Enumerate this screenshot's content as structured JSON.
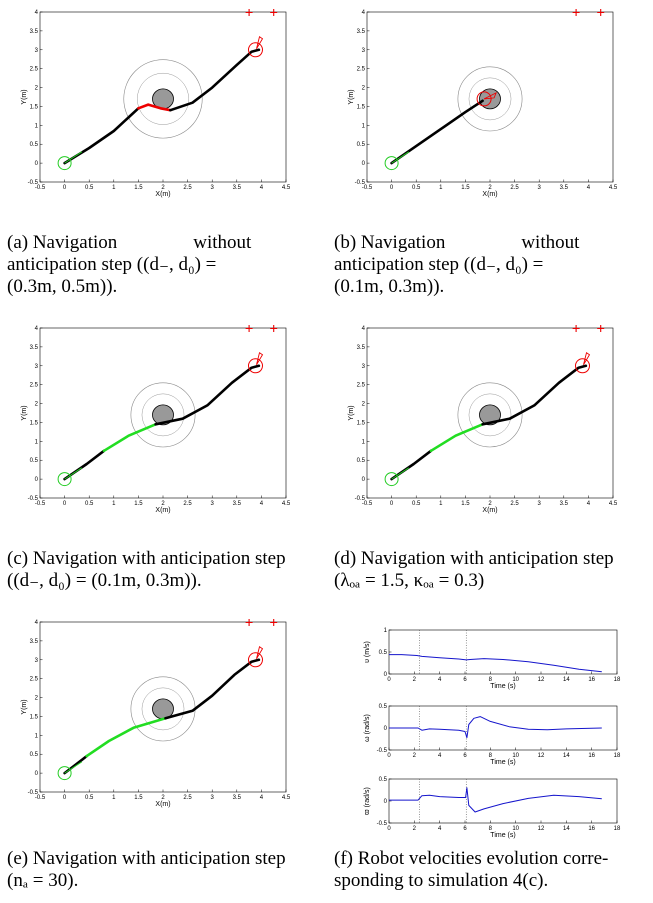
{
  "traj_panels": [
    {
      "id": "a",
      "xlabel": "X(m)",
      "ylabel": "Y(m)",
      "xticks": [
        "-0.5",
        "0",
        "0.5",
        "1",
        "1.5",
        "2",
        "2.5",
        "3",
        "3.5",
        "4",
        "4.5"
      ],
      "yticks": [
        "-0.5",
        "0",
        "0.5",
        "1",
        "1.5",
        "2",
        "2.5",
        "3",
        "3.5",
        "4"
      ],
      "caption_lines": [
        "(a) Navigation    without",
        "anticipation step ((d₋, d₀) =",
        "(0.3m, 0.5m))."
      ],
      "outer_radius": 0.55,
      "path": [
        {
          "color": "#000000",
          "pts": [
            [
              0,
              0
            ],
            [
              0.5,
              0.4
            ],
            [
              1.0,
              0.85
            ],
            [
              1.5,
              1.45
            ]
          ]
        },
        {
          "color": "#ee0000",
          "pts": [
            [
              1.5,
              1.45
            ],
            [
              1.7,
              1.55
            ],
            [
              1.95,
              1.45
            ],
            [
              2.15,
              1.4
            ]
          ]
        },
        {
          "color": "#000000",
          "pts": [
            [
              2.15,
              1.4
            ],
            [
              2.6,
              1.6
            ],
            [
              3.0,
              2.0
            ],
            [
              3.5,
              2.6
            ],
            [
              3.8,
              2.95
            ],
            [
              3.95,
              3.0
            ]
          ]
        }
      ]
    },
    {
      "id": "b",
      "xlabel": "X(m)",
      "ylabel": "Y(m)",
      "xticks": [
        "-0.5",
        "0",
        "0.5",
        "1",
        "1.5",
        "2",
        "2.5",
        "3",
        "3.5",
        "4",
        "4.5"
      ],
      "yticks": [
        "-0.5",
        "0",
        "0.5",
        "1",
        "1.5",
        "2",
        "2.5",
        "3",
        "3.5",
        "4"
      ],
      "caption_lines": [
        "(b) Navigation    without",
        "anticipation step ((d₋, d₀) =",
        "(0.1m, 0.3m))."
      ],
      "outer_radius": 0.45,
      "path": [
        {
          "color": "#000000",
          "pts": [
            [
              0,
              0
            ],
            [
              0.5,
              0.45
            ],
            [
              1.0,
              0.9
            ],
            [
              1.5,
              1.35
            ],
            [
              1.85,
              1.65
            ]
          ]
        }
      ]
    },
    {
      "id": "c",
      "xlabel": "X(m)",
      "ylabel": "Y(m)",
      "xticks": [
        "-0.5",
        "0",
        "0.5",
        "1",
        "1.5",
        "2",
        "2.5",
        "3",
        "3.5",
        "4",
        "4.5"
      ],
      "yticks": [
        "-0.5",
        "0",
        "0.5",
        "1",
        "1.5",
        "2",
        "2.5",
        "3",
        "3.5",
        "4"
      ],
      "caption_lines": [
        "(c) Navigation with anticipation step",
        "((d₋, d₀) = (0.1m, 0.3m))."
      ],
      "outer_radius": 0.45,
      "path": [
        {
          "color": "#000000",
          "pts": [
            [
              0,
              0
            ],
            [
              0.45,
              0.4
            ],
            [
              0.8,
              0.75
            ]
          ]
        },
        {
          "color": "#22dd22",
          "pts": [
            [
              0.8,
              0.75
            ],
            [
              1.3,
              1.15
            ],
            [
              1.85,
              1.45
            ]
          ]
        },
        {
          "color": "#000000",
          "pts": [
            [
              1.85,
              1.45
            ],
            [
              2.4,
              1.6
            ],
            [
              2.9,
              1.95
            ],
            [
              3.4,
              2.55
            ],
            [
              3.8,
              2.95
            ],
            [
              3.95,
              3.0
            ]
          ]
        }
      ]
    },
    {
      "id": "d",
      "xlabel": "X(m)",
      "ylabel": "Y(m)",
      "xticks": [
        "-0.5",
        "0",
        "0.5",
        "1",
        "1.5",
        "2",
        "2.5",
        "3",
        "3.5",
        "4",
        "4.5"
      ],
      "yticks": [
        "-0.5",
        "0",
        "0.5",
        "1",
        "1.5",
        "2",
        "2.5",
        "3",
        "3.5",
        "4"
      ],
      "caption_lines": [
        "(d) Navigation with anticipation step",
        "(λₒₐ = 1.5, κₒₐ = 0.3)"
      ],
      "outer_radius": 0.45,
      "path": [
        {
          "color": "#000000",
          "pts": [
            [
              0,
              0
            ],
            [
              0.45,
              0.4
            ],
            [
              0.8,
              0.75
            ]
          ]
        },
        {
          "color": "#22dd22",
          "pts": [
            [
              0.8,
              0.75
            ],
            [
              1.3,
              1.15
            ],
            [
              1.85,
              1.45
            ]
          ]
        },
        {
          "color": "#000000",
          "pts": [
            [
              1.85,
              1.45
            ],
            [
              2.4,
              1.6
            ],
            [
              2.9,
              1.95
            ],
            [
              3.4,
              2.55
            ],
            [
              3.8,
              2.95
            ],
            [
              3.95,
              3.0
            ]
          ]
        }
      ]
    },
    {
      "id": "e",
      "xlabel": "X(m)",
      "ylabel": "Y(m)",
      "xticks": [
        "-0.5",
        "0",
        "0.5",
        "1",
        "1.5",
        "2",
        "2.5",
        "3",
        "3.5",
        "4",
        "4.5"
      ],
      "yticks": [
        "-0.5",
        "0",
        "0.5",
        "1",
        "1.5",
        "2",
        "2.5",
        "3",
        "3.5",
        "4"
      ],
      "caption_lines": [
        "(e) Navigation with anticipation step",
        "(nₐ = 30)."
      ],
      "outer_radius": 0.45,
      "path": [
        {
          "color": "#000000",
          "pts": [
            [
              0,
              0
            ],
            [
              0.3,
              0.3
            ],
            [
              0.45,
              0.45
            ]
          ]
        },
        {
          "color": "#22dd22",
          "pts": [
            [
              0.45,
              0.45
            ],
            [
              0.9,
              0.85
            ],
            [
              1.4,
              1.2
            ],
            [
              2.05,
              1.45
            ]
          ]
        },
        {
          "color": "#000000",
          "pts": [
            [
              2.05,
              1.45
            ],
            [
              2.6,
              1.65
            ],
            [
              3.0,
              2.05
            ],
            [
              3.45,
              2.6
            ],
            [
              3.8,
              2.95
            ],
            [
              3.95,
              3.0
            ]
          ]
        }
      ]
    }
  ],
  "vel_panel": {
    "id": "f",
    "caption_lines": [
      "(f) Robot velocities evolution corre-",
      "sponding to simulation 4(c)."
    ],
    "xlabel": "Time (s)",
    "xticks": [
      "0",
      "2",
      "4",
      "6",
      "8",
      "10",
      "12",
      "14",
      "16",
      "18"
    ],
    "vlines": [
      2.4,
      6.1
    ],
    "subplots": [
      {
        "name": "linear-velocity",
        "ylabel": "υ (m/s)",
        "yticks": [
          "0",
          "0.5",
          "1"
        ],
        "ylim": [
          0,
          1
        ],
        "data": [
          [
            0,
            0.44
          ],
          [
            1,
            0.44
          ],
          [
            2.2,
            0.42
          ],
          [
            2.6,
            0.4
          ],
          [
            4,
            0.37
          ],
          [
            5.5,
            0.34
          ],
          [
            6.1,
            0.32
          ],
          [
            6.4,
            0.33
          ],
          [
            7.5,
            0.35
          ],
          [
            9,
            0.33
          ],
          [
            11,
            0.28
          ],
          [
            13,
            0.2
          ],
          [
            15,
            0.11
          ],
          [
            16.8,
            0.05
          ]
        ]
      },
      {
        "name": "angular-velocity",
        "ylabel": "ω (rad/s)",
        "yticks": [
          "-0.5",
          "0",
          "0.5"
        ],
        "ylim": [
          -0.5,
          0.5
        ],
        "data": [
          [
            0,
            0.0
          ],
          [
            2.3,
            0.0
          ],
          [
            2.6,
            -0.05
          ],
          [
            3.2,
            -0.02
          ],
          [
            4,
            -0.03
          ],
          [
            5.5,
            -0.05
          ],
          [
            6.0,
            -0.08
          ],
          [
            6.15,
            -0.22
          ],
          [
            6.3,
            0.08
          ],
          [
            6.7,
            0.22
          ],
          [
            7.2,
            0.26
          ],
          [
            8,
            0.15
          ],
          [
            9.5,
            0.03
          ],
          [
            11,
            -0.03
          ],
          [
            12.5,
            -0.04
          ],
          [
            14,
            -0.02
          ],
          [
            16.8,
            0.0
          ]
        ]
      },
      {
        "name": "angular-acceleration",
        "ylabel": "ϖ (rad/s)",
        "yticks": [
          "-0.5",
          "0",
          "0.5"
        ],
        "ylim": [
          -0.5,
          0.5
        ],
        "data": [
          [
            0,
            0.02
          ],
          [
            2.3,
            0.02
          ],
          [
            2.6,
            0.12
          ],
          [
            3.2,
            0.13
          ],
          [
            4,
            0.1
          ],
          [
            5.5,
            0.08
          ],
          [
            6.05,
            0.08
          ],
          [
            6.15,
            0.3
          ],
          [
            6.3,
            -0.1
          ],
          [
            6.8,
            -0.25
          ],
          [
            7.5,
            -0.18
          ],
          [
            9,
            -0.06
          ],
          [
            11,
            0.06
          ],
          [
            13,
            0.13
          ],
          [
            15,
            0.1
          ],
          [
            16.8,
            0.05
          ]
        ]
      }
    ]
  }
}
